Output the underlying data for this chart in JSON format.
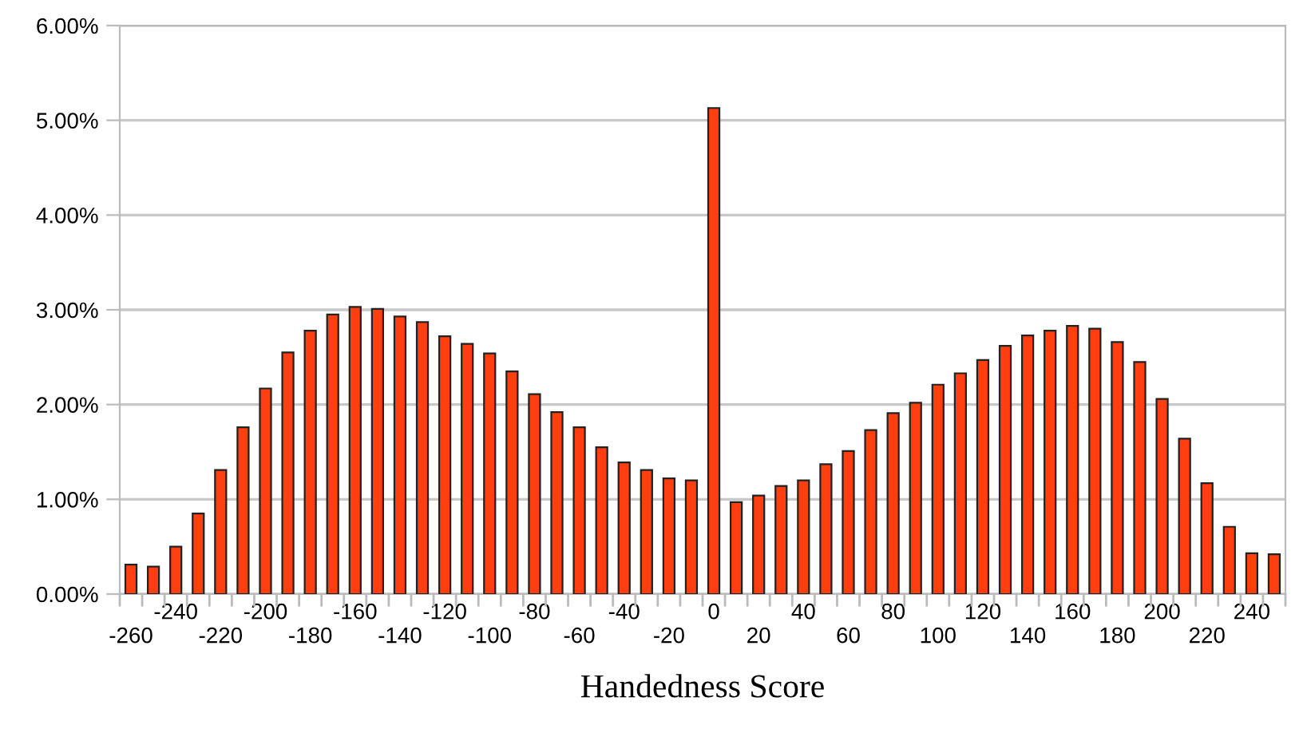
{
  "chart_data": {
    "type": "bar",
    "xlabel": "Handedness Score",
    "categories": [
      "-260",
      null,
      "-240",
      null,
      "-220",
      null,
      "-200",
      null,
      "-180",
      null,
      "-160",
      null,
      "-140",
      null,
      "-120",
      null,
      "-100",
      null,
      "-80",
      null,
      "-60",
      null,
      "-40",
      null,
      "-20",
      null,
      "0",
      null,
      "20",
      null,
      "40",
      null,
      "60",
      null,
      "80",
      null,
      "100",
      null,
      "120",
      null,
      "140",
      null,
      "160",
      null,
      "180",
      null,
      "200",
      null,
      "220",
      null,
      "240",
      null
    ],
    "values": [
      0.31,
      0.29,
      0.5,
      0.85,
      1.31,
      1.76,
      2.17,
      2.55,
      2.78,
      2.95,
      3.03,
      3.01,
      2.93,
      2.87,
      2.72,
      2.64,
      2.54,
      2.35,
      2.11,
      1.92,
      1.76,
      1.55,
      1.39,
      1.31,
      1.22,
      1.2,
      5.13,
      0.97,
      1.04,
      1.14,
      1.2,
      1.37,
      1.51,
      1.73,
      1.91,
      2.02,
      2.21,
      2.33,
      2.47,
      2.62,
      2.73,
      2.78,
      2.83,
      2.8,
      2.66,
      2.45,
      2.06,
      1.64,
      1.17,
      0.71,
      0.43,
      0.42
    ],
    "color": "#ff3f0f",
    "ylim": [
      0,
      6
    ],
    "yticks": [
      {
        "value": 0,
        "label": "0.00%"
      },
      {
        "value": 1,
        "label": "1.00%"
      },
      {
        "value": 2,
        "label": "2.00%"
      },
      {
        "value": 3,
        "label": "3.00%"
      },
      {
        "value": 4,
        "label": "4.00%"
      },
      {
        "value": 5,
        "label": "5.00%"
      },
      {
        "value": 6,
        "label": "6.00%"
      }
    ],
    "grid": "y"
  }
}
